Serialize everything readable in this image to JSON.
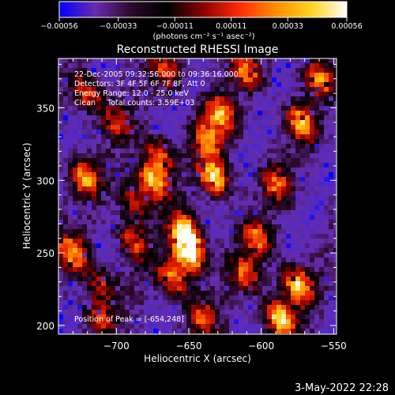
{
  "chart_data": {
    "type": "heatmap",
    "title": "Reconstructed RHESSI Image",
    "xlabel": "Heliocentric X (arcsec)",
    "ylabel": "Heliocentric Y (arcsec)",
    "xlim": [
      -740,
      -548
    ],
    "ylim": [
      194,
      384
    ],
    "x_ticks": [
      -700,
      -650,
      -600,
      -550
    ],
    "y_ticks": [
      200,
      250,
      300,
      350
    ],
    "x_tick_labels": [
      "−700",
      "−650",
      "−600",
      "−550"
    ],
    "y_tick_labels": [
      "200",
      "250",
      "300",
      "350"
    ],
    "colorbar": {
      "range": [
        -0.00056,
        0.00056
      ],
      "ticks": [
        -0.00056,
        -0.00033,
        -0.00011,
        0.00011,
        0.00033,
        0.00056
      ],
      "tick_labels": [
        "−0.00056",
        "−0.00033",
        "−0.00011",
        "0.00011",
        "0.00033",
        "0.00056"
      ],
      "unit_label": "(photons cm⁻² s⁻¹ asec⁻²)",
      "colors": [
        "#0000ff",
        "#6a2ab0",
        "#2a0a2a",
        "#000000",
        "#8b0000",
        "#ff2a00",
        "#ff8c00",
        "#ffd21e",
        "#ffffff"
      ]
    },
    "annotations": [
      "22-Dec-2005 09:32:56.000 to 09:36:16.000",
      "Detectors: 3F 4F 5F 6F 7F 8F, Att 0",
      "Energy Range: 12.0 - 25.0 keV",
      "Clean     Total counts: 3.59E+03"
    ],
    "peak_label": "Position of Peak = [-654,248]",
    "peak": [
      -654,
      248
    ],
    "bright_sources": [
      {
        "x": -650,
        "y": 250,
        "level": 1.0
      },
      {
        "x": -652,
        "y": 265,
        "level": 0.8
      },
      {
        "x": -661,
        "y": 232,
        "level": 0.7
      },
      {
        "x": -675,
        "y": 300,
        "level": 0.8
      },
      {
        "x": -670,
        "y": 318,
        "level": 0.6
      },
      {
        "x": -632,
        "y": 302,
        "level": 0.85
      },
      {
        "x": -637,
        "y": 328,
        "level": 0.6
      },
      {
        "x": -628,
        "y": 346,
        "level": 0.7
      },
      {
        "x": -722,
        "y": 302,
        "level": 0.7
      },
      {
        "x": -730,
        "y": 250,
        "level": 0.7
      },
      {
        "x": -720,
        "y": 360,
        "level": 0.6
      },
      {
        "x": -690,
        "y": 258,
        "level": 0.55
      },
      {
        "x": -688,
        "y": 285,
        "level": 0.5
      },
      {
        "x": -710,
        "y": 228,
        "level": 0.5
      },
      {
        "x": -712,
        "y": 205,
        "level": 0.45
      },
      {
        "x": -602,
        "y": 260,
        "level": 0.6
      },
      {
        "x": -610,
        "y": 235,
        "level": 0.55
      },
      {
        "x": -587,
        "y": 205,
        "level": 0.9
      },
      {
        "x": -575,
        "y": 228,
        "level": 0.8
      },
      {
        "x": -572,
        "y": 340,
        "level": 0.7
      },
      {
        "x": -560,
        "y": 370,
        "level": 0.6
      },
      {
        "x": -590,
        "y": 298,
        "level": 0.55
      },
      {
        "x": -610,
        "y": 375,
        "level": 0.6
      },
      {
        "x": -640,
        "y": 205,
        "level": 0.55
      },
      {
        "x": -665,
        "y": 375,
        "level": 0.5
      },
      {
        "x": -700,
        "y": 340,
        "level": 0.45
      }
    ],
    "grid": false
  },
  "footer": {
    "date": "3-May-2022 22:28"
  }
}
